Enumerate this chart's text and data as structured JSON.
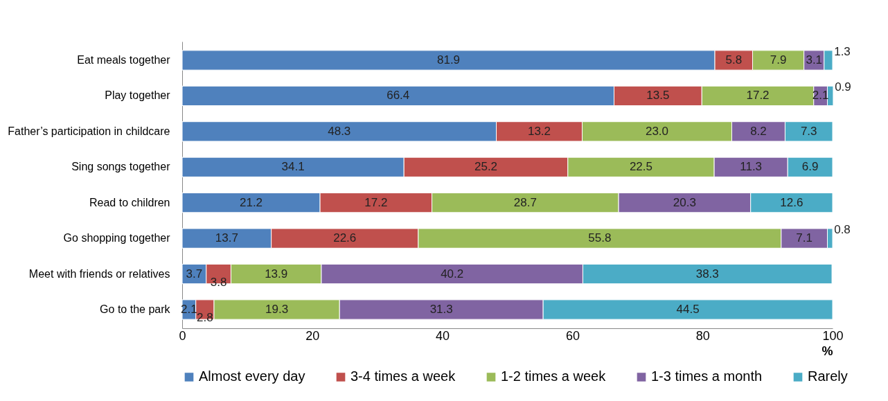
{
  "chart_data": {
    "type": "bar",
    "orientation": "horizontal",
    "stacked": true,
    "legend": "bottom",
    "grid": false,
    "xlabel": "%",
    "categories": [
      "Eat meals together",
      "Play together",
      "Father’s participation in childcare",
      "Sing songs together",
      "Read to children",
      "Go shopping together",
      "Meet with friends or relatives",
      "Go to the park"
    ],
    "xlim": [
      0,
      100
    ],
    "xticks": [
      0,
      20,
      40,
      60,
      80,
      100
    ],
    "series": [
      {
        "name": "Almost every day",
        "color": "#4f81bd",
        "values": [
          81.9,
          66.4,
          48.3,
          34.1,
          21.2,
          13.7,
          3.7,
          2.1
        ],
        "value_labels": [
          "81.9",
          "66.4",
          "48.3",
          "34.1",
          "21.2",
          "13.7",
          "3.7",
          "2.1"
        ]
      },
      {
        "name": "3-4 times a week",
        "color": "#c0504d",
        "values": [
          5.8,
          13.5,
          13.2,
          25.2,
          17.2,
          22.6,
          3.8,
          2.8
        ],
        "value_labels": [
          "5.8",
          "13.5",
          "13.2",
          "25.2",
          "17.2",
          "22.6",
          "3.8",
          "2.8"
        ]
      },
      {
        "name": "1-2 times a week",
        "color": "#9bbb59",
        "values": [
          7.9,
          17.2,
          23.0,
          22.5,
          28.7,
          55.8,
          13.9,
          19.3
        ],
        "value_labels": [
          "7.9",
          "17.2",
          "23.0",
          "22.5",
          "28.7",
          "55.8",
          "13.9",
          "19.3"
        ]
      },
      {
        "name": "1-3 times a month",
        "color": "#8064a2",
        "values": [
          3.1,
          2.1,
          8.2,
          11.3,
          20.3,
          7.1,
          40.2,
          31.3
        ],
        "value_labels": [
          "3.1",
          "2.1",
          "8.2",
          "11.3",
          "20.3",
          "7.1",
          "40.2",
          "31.3"
        ]
      },
      {
        "name": "Rarely",
        "color": "#4bacc6",
        "values": [
          1.3,
          0.9,
          7.3,
          6.9,
          12.6,
          0.8,
          38.3,
          44.5
        ],
        "value_labels": [
          "1.3",
          "0.9",
          "7.3",
          "6.9",
          "12.6",
          "0.8",
          "38.3",
          "44.5"
        ]
      }
    ]
  }
}
